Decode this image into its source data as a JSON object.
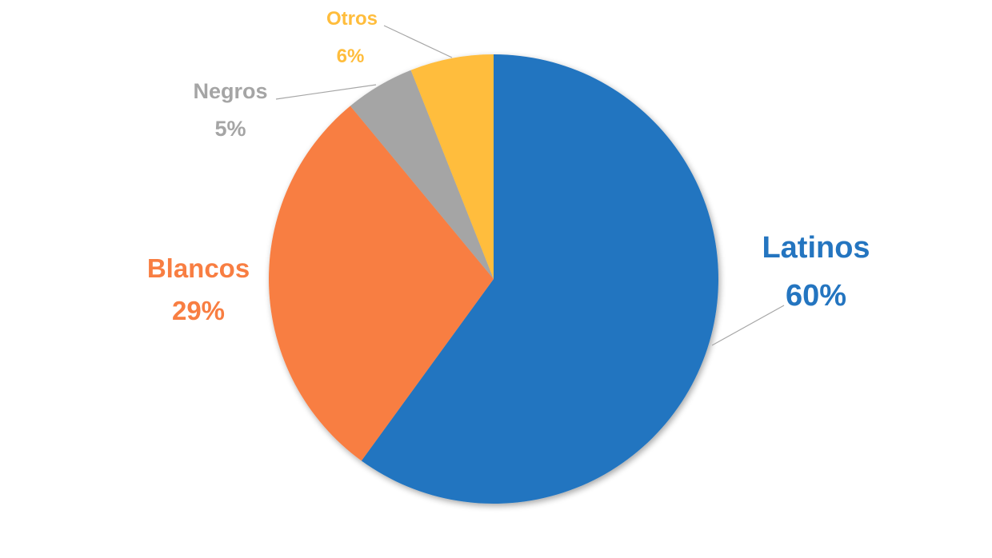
{
  "chart_data": {
    "type": "pie",
    "title": "",
    "start_angle": "12 o'clock",
    "direction": "clockwise",
    "legend": "none (data labels with leader lines)",
    "slices": [
      {
        "label": "Latinos",
        "value": 60,
        "value_label": "60%",
        "color": "#2475C0"
      },
      {
        "label": "Blancos",
        "value": 29,
        "value_label": "29%",
        "color": "#F87E42"
      },
      {
        "label": "Negros",
        "value": 5,
        "value_label": "5%",
        "color": "#A5A5A5"
      },
      {
        "label": "Otros",
        "value": 6,
        "value_label": "6%",
        "color": "#FFBD3C"
      }
    ]
  }
}
